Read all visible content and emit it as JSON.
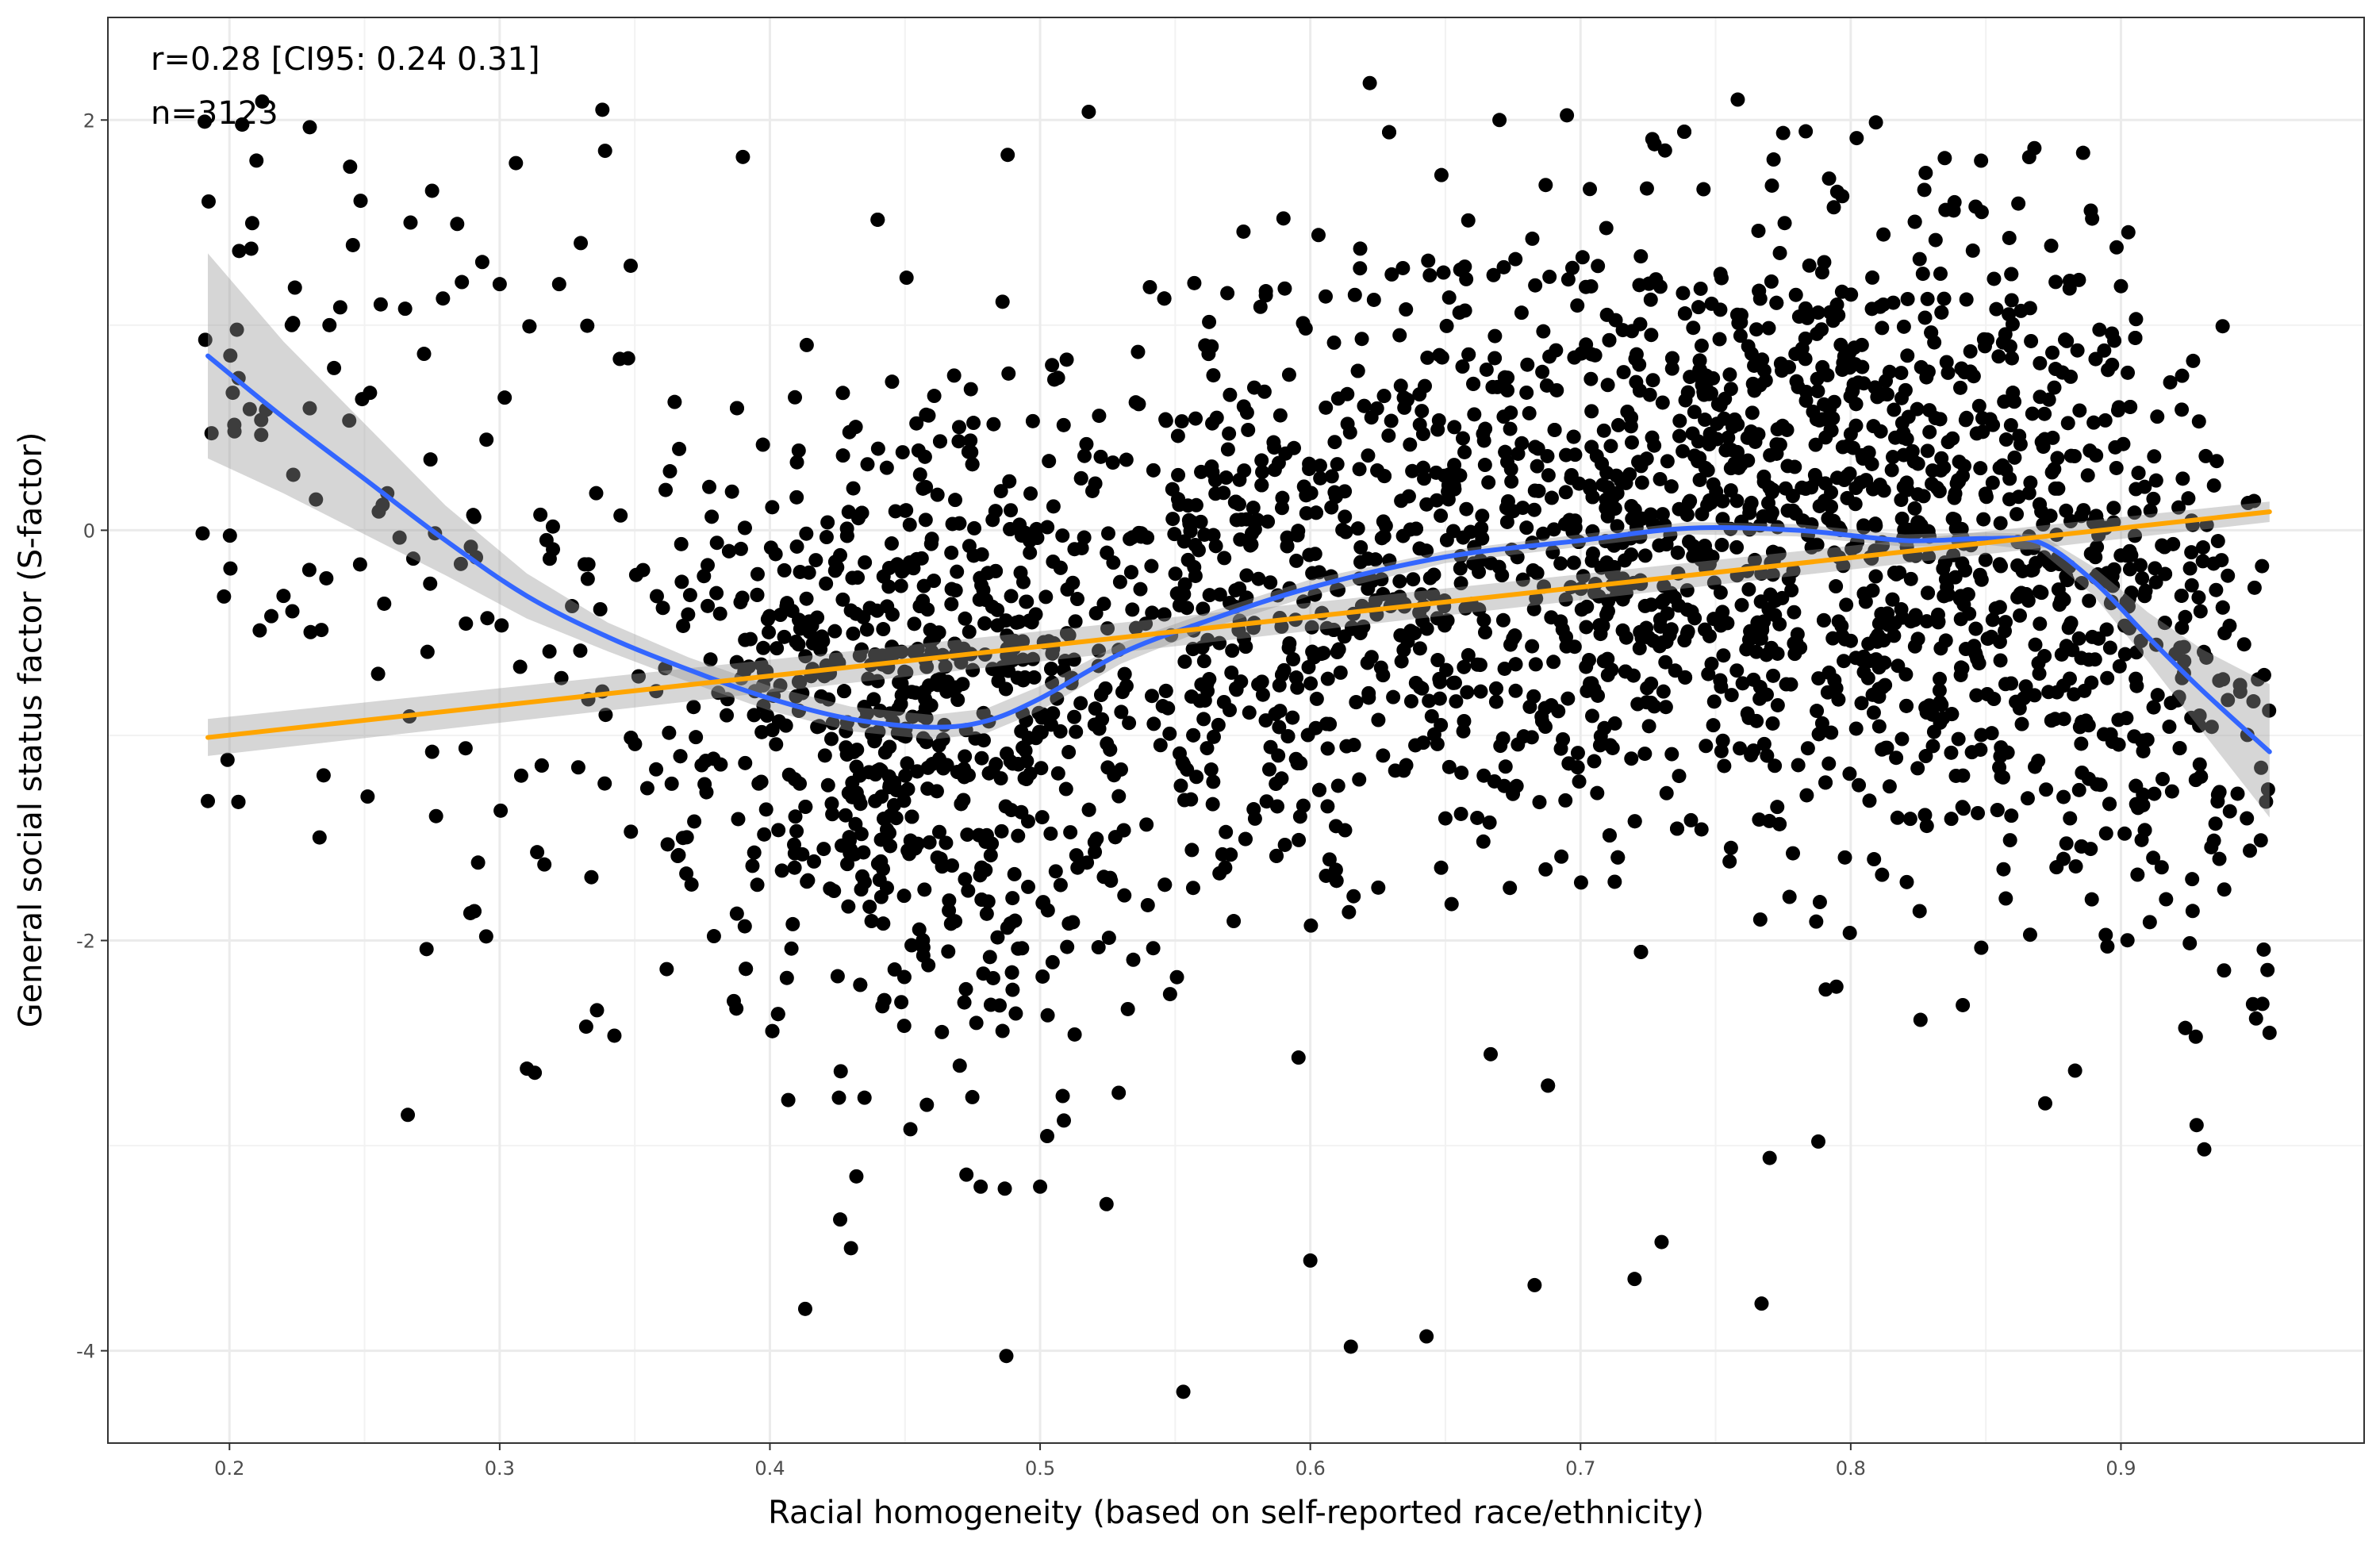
{
  "chart_data": {
    "type": "scatter",
    "title": "",
    "xlabel": "Racial homogeneity (based on self-reported race/ethnicity)",
    "ylabel": "General social status factor (S-factor)",
    "xlim": [
      0.155,
      0.99
    ],
    "ylim": [
      -4.45,
      2.5
    ],
    "x_ticks": [
      0.2,
      0.3,
      0.4,
      0.5,
      0.6,
      0.7,
      0.8,
      0.9
    ],
    "x_tick_labels": [
      "0.2",
      "0.3",
      "0.4",
      "0.5",
      "0.6",
      "0.7",
      "0.8",
      "0.9"
    ],
    "y_ticks": [
      -4,
      -2,
      0,
      2
    ],
    "y_tick_labels": [
      "-4",
      "-2",
      "0",
      "2"
    ],
    "grid": true,
    "annotations": [
      "r=0.28 [CI95: 0.24 0.31]",
      "n=3123"
    ],
    "n_points": 3123,
    "sample_points": [
      {
        "x": 0.192,
        "y": -1.32
      },
      {
        "x": 0.22,
        "y": -0.32
      },
      {
        "x": 0.232,
        "y": 0.15
      },
      {
        "x": 0.237,
        "y": 1.0
      },
      {
        "x": 0.252,
        "y": 0.67
      },
      {
        "x": 0.255,
        "y": -0.7
      },
      {
        "x": 0.265,
        "y": 1.08
      },
      {
        "x": 0.266,
        "y": -2.85
      },
      {
        "x": 0.267,
        "y": 1.5
      },
      {
        "x": 0.272,
        "y": 0.86
      },
      {
        "x": 0.275,
        "y": -1.08
      },
      {
        "x": 0.279,
        "y": 1.13
      },
      {
        "x": 0.286,
        "y": 1.21
      },
      {
        "x": 0.292,
        "y": -1.62
      },
      {
        "x": 0.295,
        "y": -1.98
      },
      {
        "x": 0.3,
        "y": 1.2
      },
      {
        "x": 0.306,
        "y": 1.79
      },
      {
        "x": 0.322,
        "y": 1.2
      },
      {
        "x": 0.33,
        "y": 1.4
      },
      {
        "x": 0.332,
        "y": -2.42
      },
      {
        "x": 0.336,
        "y": -2.34
      },
      {
        "x": 0.338,
        "y": 2.05
      },
      {
        "x": 0.339,
        "y": 1.85
      },
      {
        "x": 0.39,
        "y": 1.82
      },
      {
        "x": 0.43,
        "y": -3.5
      },
      {
        "x": 0.426,
        "y": -3.36
      },
      {
        "x": 0.432,
        "y": -3.15
      },
      {
        "x": 0.452,
        "y": -2.92
      },
      {
        "x": 0.478,
        "y": -3.2
      },
      {
        "x": 0.488,
        "y": 1.83
      },
      {
        "x": 0.5,
        "y": -3.2
      },
      {
        "x": 0.518,
        "y": 2.04
      },
      {
        "x": 0.553,
        "y": -4.2
      },
      {
        "x": 0.6,
        "y": -3.56
      },
      {
        "x": 0.615,
        "y": -3.98
      },
      {
        "x": 0.622,
        "y": 2.18
      },
      {
        "x": 0.643,
        "y": -3.93
      },
      {
        "x": 0.67,
        "y": 2.0
      },
      {
        "x": 0.683,
        "y": -3.68
      },
      {
        "x": 0.72,
        "y": -3.65
      },
      {
        "x": 0.73,
        "y": -3.47
      },
      {
        "x": 0.767,
        "y": -3.77
      },
      {
        "x": 0.77,
        "y": -3.06
      },
      {
        "x": 0.788,
        "y": -2.98
      },
      {
        "x": 0.795,
        "y": 1.65
      },
      {
        "x": 0.886,
        "y": 1.84
      },
      {
        "x": 0.928,
        "y": -2.9
      },
      {
        "x": 0.95,
        "y": -2.38
      },
      {
        "x": 0.955,
        "y": -2.45
      },
      {
        "x": 0.9,
        "y": 1.19
      }
    ],
    "series": [
      {
        "name": "",
        "kind": "loess",
        "color": "#3366ff",
        "x": [
          0.192,
          0.22,
          0.25,
          0.28,
          0.31,
          0.34,
          0.37,
          0.4,
          0.43,
          0.46,
          0.48,
          0.5,
          0.53,
          0.56,
          0.6,
          0.65,
          0.7,
          0.74,
          0.78,
          0.82,
          0.85,
          0.87,
          0.89,
          0.91,
          0.93,
          0.955
        ],
        "y": [
          0.85,
          0.55,
          0.25,
          -0.05,
          -0.32,
          -0.52,
          -0.68,
          -0.82,
          -0.92,
          -0.96,
          -0.93,
          -0.82,
          -0.6,
          -0.45,
          -0.28,
          -0.13,
          -0.05,
          0.01,
          0.0,
          -0.05,
          -0.04,
          -0.06,
          -0.25,
          -0.52,
          -0.78,
          -1.08
        ],
        "ci_upper": [
          1.35,
          0.92,
          0.52,
          0.12,
          -0.21,
          -0.45,
          -0.62,
          -0.76,
          -0.86,
          -0.9,
          -0.87,
          -0.76,
          -0.55,
          -0.41,
          -0.24,
          -0.1,
          -0.02,
          0.04,
          0.03,
          -0.02,
          -0.01,
          -0.02,
          -0.18,
          -0.4,
          -0.58,
          -0.75
        ],
        "ci_lower": [
          0.35,
          0.18,
          -0.02,
          -0.22,
          -0.43,
          -0.59,
          -0.74,
          -0.88,
          -0.98,
          -1.02,
          -0.99,
          -0.88,
          -0.65,
          -0.49,
          -0.32,
          -0.16,
          -0.08,
          -0.02,
          -0.03,
          -0.08,
          -0.07,
          -0.1,
          -0.32,
          -0.64,
          -0.98,
          -1.4
        ]
      },
      {
        "name": "",
        "kind": "linear",
        "color": "#ffa500",
        "x": [
          0.192,
          0.955
        ],
        "y": [
          -1.01,
          0.09
        ],
        "ci_upper": [
          -0.92,
          0.14
        ],
        "ci_lower": [
          -1.1,
          0.04
        ]
      }
    ],
    "ci_color": "#999999"
  }
}
